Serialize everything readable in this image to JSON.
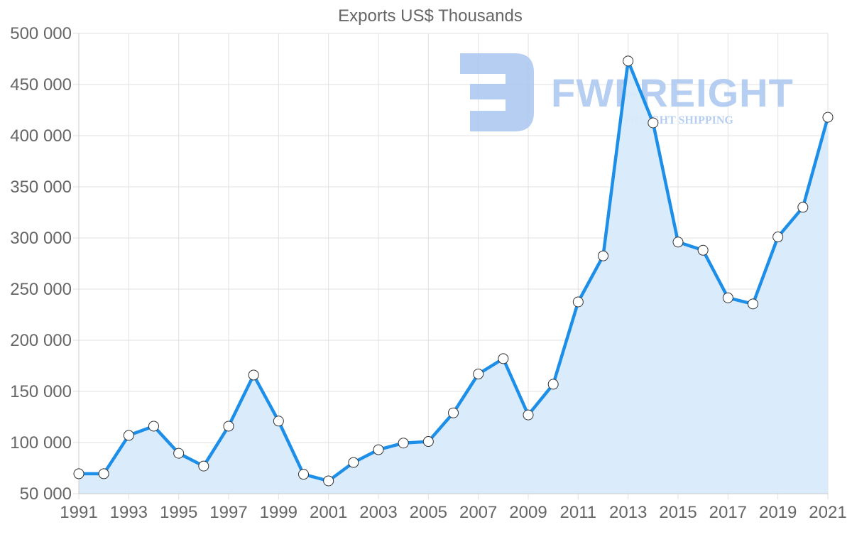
{
  "chart_data": {
    "type": "area",
    "title": "Exports US$ Thousands",
    "xlabel": "",
    "ylabel": "",
    "ylim": [
      50000,
      500000
    ],
    "y_ticks": [
      50000,
      100000,
      150000,
      200000,
      250000,
      300000,
      350000,
      400000,
      450000,
      500000
    ],
    "y_tick_labels": [
      "50 000",
      "100 000",
      "150 000",
      "200 000",
      "250 000",
      "300 000",
      "350 000",
      "400 000",
      "450 000",
      "500 000"
    ],
    "x_tick_labels": [
      "1991",
      "1993",
      "1995",
      "1997",
      "1999",
      "2001",
      "2003",
      "2005",
      "2007",
      "2009",
      "2011",
      "2013",
      "2015",
      "2017",
      "2019",
      "2021"
    ],
    "grid": true,
    "legend": "none",
    "categories": [
      "1991",
      "1992",
      "1993",
      "1994",
      "1995",
      "1996",
      "1997",
      "1998",
      "1999",
      "2000",
      "2001",
      "2002",
      "2003",
      "2004",
      "2005",
      "2006",
      "2007",
      "2008",
      "2009",
      "2010",
      "2011",
      "2012",
      "2013",
      "2014",
      "2015",
      "2016",
      "2017",
      "2018",
      "2019",
      "2020",
      "2021"
    ],
    "series": [
      {
        "name": "Exports",
        "values": [
          69500,
          69500,
          107000,
          116000,
          89500,
          77000,
          116000,
          166000,
          121000,
          69000,
          62500,
          80500,
          93000,
          99500,
          101000,
          129000,
          167000,
          182000,
          127000,
          157000,
          237500,
          282500,
          473000,
          412500,
          296000,
          288000,
          241500,
          235500,
          301000,
          330000,
          418000
        ]
      }
    ]
  },
  "colors": {
    "line": "#1e8fe8",
    "fill": "#d8ebfb",
    "grid": "#e1e1e1",
    "text": "#666666",
    "point_fill": "#ffffff",
    "point_stroke": "#333333",
    "watermark": "#a9c6f0"
  },
  "watermark": {
    "logo_icon": "fw-logo-icon",
    "brand": "FWFREIGHT",
    "tagline": "FREIGHT SHIPPING"
  }
}
